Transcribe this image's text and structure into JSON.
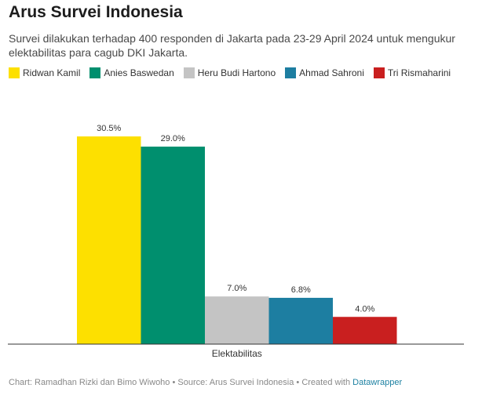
{
  "header": {
    "title": "Arus Survei Indonesia",
    "subtitle": "Survei dilakukan terhadap 400 responden di Jakarta pada 23-29 April 2024 untuk mengukur elektabilitas para cagub DKI Jakarta."
  },
  "chart_data": {
    "type": "bar",
    "categories": [
      "Elektabilitas"
    ],
    "series": [
      {
        "name": "Ridwan Kamil",
        "values": [
          30.5
        ],
        "label": "30.5%",
        "color": "#fde000"
      },
      {
        "name": "Anies Baswedan",
        "values": [
          29.0
        ],
        "label": "29.0%",
        "color": "#008f6e"
      },
      {
        "name": "Heru Budi Hartono",
        "values": [
          7.0
        ],
        "label": "7.0%",
        "color": "#c4c4c4"
      },
      {
        "name": "Ahmad Sahroni",
        "values": [
          6.8
        ],
        "label": "6.8%",
        "color": "#1d7ea1"
      },
      {
        "name": "Tri Rismaharini",
        "values": [
          4.0
        ],
        "label": "4.0%",
        "color": "#c91f1f"
      }
    ],
    "ylim": [
      0,
      32
    ],
    "grid": false,
    "legend_position": "top-left"
  },
  "footer": {
    "text": "Chart: Ramadhan Rizki dan Bimo Wiwoho • Source: Arus Survei Indonesia • Created with ",
    "link_text": "Datawrapper"
  }
}
